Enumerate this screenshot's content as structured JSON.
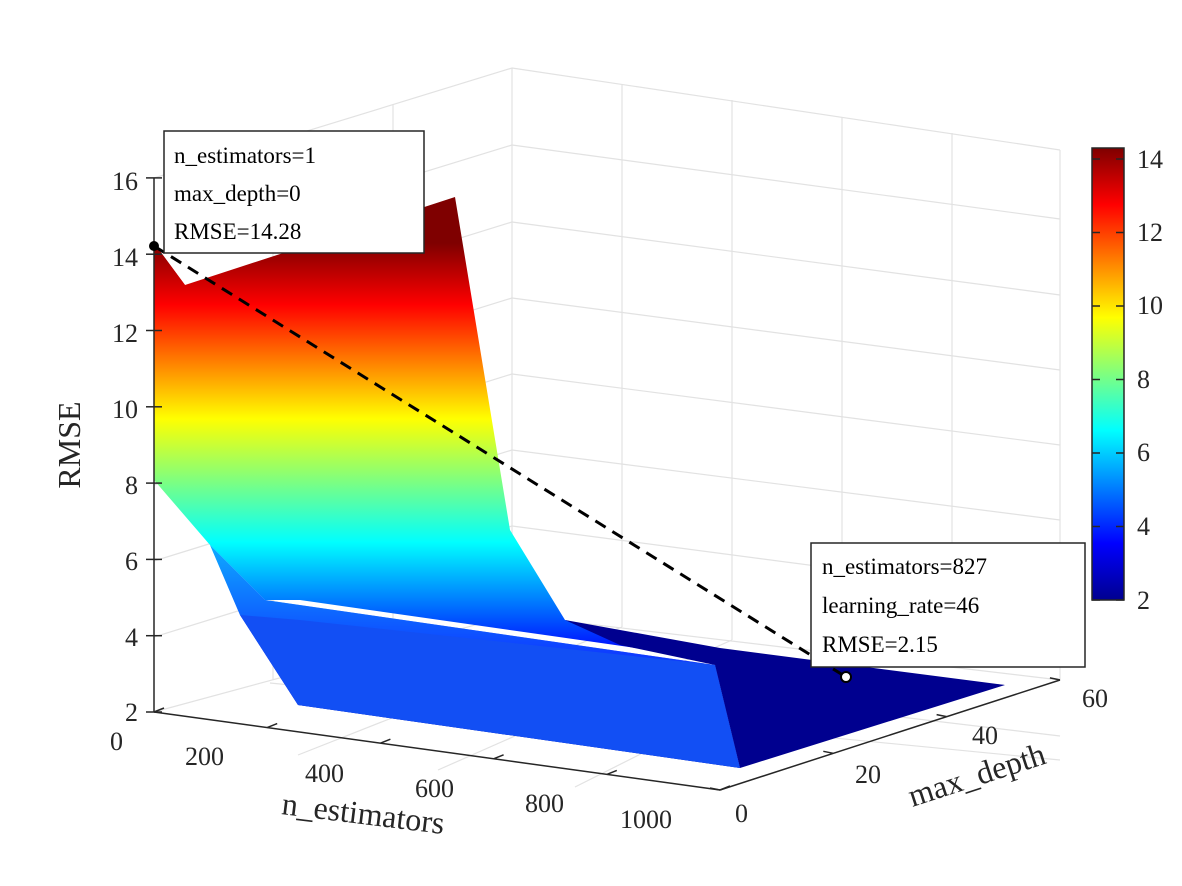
{
  "chart_data": {
    "type": "surface",
    "xlabel": "n_estimators",
    "ylabel": "max_depth",
    "zlabel": "RMSE",
    "x_ticks": [
      "200",
      "400",
      "600",
      "800",
      "1000"
    ],
    "x_zero_label": "0",
    "y_ticks": [
      "0",
      "20",
      "40",
      "60"
    ],
    "z_ticks": [
      "2",
      "4",
      "6",
      "8",
      "10",
      "12",
      "14",
      "16"
    ],
    "colorbar": {
      "ticks": [
        "2",
        "4",
        "6",
        "8",
        "10",
        "12",
        "14"
      ],
      "range": [
        2,
        14.3
      ],
      "colormap": "jet"
    },
    "grid": true,
    "approximate_surface_profile": [
      {
        "n_estimators": 1,
        "RMSE": 14.28
      },
      {
        "n_estimators": 100,
        "RMSE": 6.3
      },
      {
        "n_estimators": 200,
        "RMSE": 4.4
      },
      {
        "n_estimators": 350,
        "RMSE": 2.5
      },
      {
        "n_estimators": 827,
        "RMSE": 2.15
      },
      {
        "n_estimators": 1000,
        "RMSE": 2.1
      }
    ],
    "connecting_line": "dashed",
    "annotations": [
      {
        "id": "max",
        "lines": [
          "n_estimators=1",
          "max_depth=0",
          "RMSE=14.28"
        ]
      },
      {
        "id": "min",
        "lines": [
          "n_estimators=827",
          "learning_rate=46",
          "RMSE=2.15"
        ]
      }
    ]
  }
}
